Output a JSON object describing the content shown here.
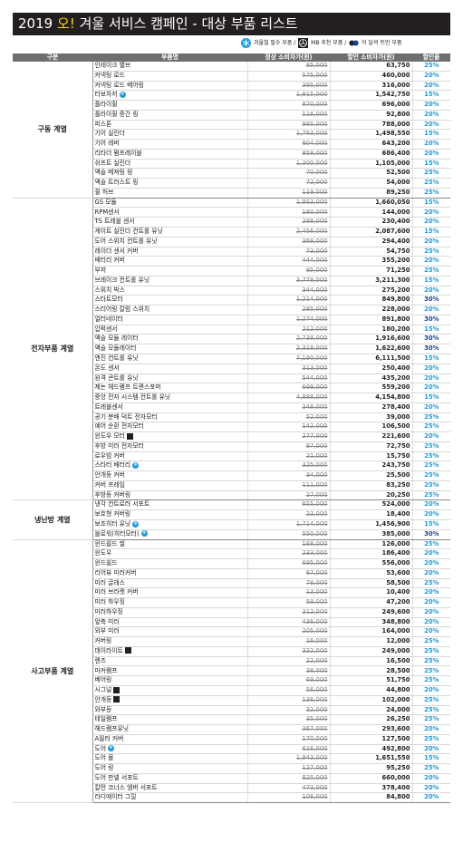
{
  "header": {
    "year": "2019",
    "accent": "오!",
    "title": "겨울 서비스 캠페인 - 대상 부품 리스트"
  },
  "legend": {
    "winter_label": "겨울철 필수 부품 /",
    "mb_label": "MB 추천 부품 /",
    "month_label": "이 달의 트만 부품"
  },
  "columns": {
    "category": "구분",
    "part": "부품명",
    "regular": "정상 소비자가(원)",
    "discount": "할인 소비자가(원)",
    "rate": "할인율"
  },
  "colors": {
    "title_bg": "#231f20",
    "accent": "#ffd400",
    "header_bg": "#6d6e70",
    "rate_blue": "#1b9ad6",
    "rate_dark": "#1c3f94"
  },
  "sections": [
    {
      "category": "구동 계열",
      "rows": [
        [
          "인테이크 밸브",
          "85,000",
          "63,750",
          "25%",
          ""
        ],
        [
          "커넥팅 로드",
          "575,000",
          "460,000",
          "20%",
          ""
        ],
        [
          "커넥팅 로드 베어링",
          "395,000",
          "316,000",
          "20%",
          ""
        ],
        [
          "터보차저",
          "1,815,000",
          "1,542,750",
          "15%",
          "w"
        ],
        [
          "플라이휠",
          "870,000",
          "696,000",
          "20%",
          ""
        ],
        [
          "플라이휠 중간 링",
          "116,000",
          "92,800",
          "20%",
          ""
        ],
        [
          "피스톤",
          "985,000",
          "788,000",
          "20%",
          ""
        ],
        [
          "기어 실린더",
          "1,763,000",
          "1,498,550",
          "15%",
          ""
        ],
        [
          "기어 레버",
          "804,000",
          "643,200",
          "20%",
          ""
        ],
        [
          "리타더 펌프레이블",
          "858,000",
          "686,400",
          "20%",
          ""
        ],
        [
          "쉬프트 실린더",
          "1,300,000",
          "1,105,000",
          "15%",
          ""
        ],
        [
          "액슬 메져링 링",
          "70,000",
          "52,500",
          "25%",
          ""
        ],
        [
          "액슬 트러스트 링",
          "72,000",
          "54,000",
          "25%",
          ""
        ],
        [
          "휠 허브",
          "119,000",
          "89,250",
          "25%",
          ""
        ]
      ]
    },
    {
      "category": "전자부품 계열",
      "rows": [
        [
          "GS 모듈",
          "1,953,000",
          "1,660,050",
          "15%",
          ""
        ],
        [
          "RPM센서",
          "180,000",
          "144,000",
          "20%",
          ""
        ],
        [
          "TS 트레블 센서",
          "288,000",
          "230,400",
          "20%",
          ""
        ],
        [
          "게이트 실린더 컨트롤 유닛",
          "2,456,000",
          "2,087,600",
          "15%",
          ""
        ],
        [
          "도어 스위치 컨트롤 유닛",
          "368,000",
          "294,400",
          "20%",
          ""
        ],
        [
          "레이더 센서 커버",
          "73,000",
          "54,750",
          "25%",
          ""
        ],
        [
          "배터리 커버",
          "444,000",
          "355,200",
          "20%",
          ""
        ],
        [
          "부저",
          "95,000",
          "71,250",
          "25%",
          ""
        ],
        [
          "브레이크 컨트롤 유닛",
          "3,778,000",
          "3,211,300",
          "15%",
          ""
        ],
        [
          "스위치 박스",
          "344,000",
          "275,200",
          "20%",
          ""
        ],
        [
          "스타트모터",
          "1,214,000",
          "849,800",
          "30%",
          ""
        ],
        [
          "스티어링 칼럼 스위치",
          "285,000",
          "228,000",
          "20%",
          ""
        ],
        [
          "얼터네이터",
          "1,274,000",
          "891,800",
          "30%",
          ""
        ],
        [
          "압력센서",
          "212,000",
          "180,200",
          "15%",
          ""
        ],
        [
          "액슬 모듈 레이터",
          "2,738,000",
          "1,916,600",
          "30%",
          ""
        ],
        [
          "액슬 모듈레이터",
          "2,318,000",
          "1,622,600",
          "30%",
          ""
        ],
        [
          "엔진 컨트롤 유닛",
          "7,190,000",
          "6,111,500",
          "15%",
          ""
        ],
        [
          "온도 센서",
          "313,000",
          "250,400",
          "20%",
          ""
        ],
        [
          "원격 콘트롤 유닛",
          "544,000",
          "435,200",
          "20%",
          ""
        ],
        [
          "제논 헤드램프 트랜스포머",
          "699,000",
          "559,200",
          "20%",
          ""
        ],
        [
          "중앙 전자 시스템 컨트롤 유닛",
          "4,888,000",
          "4,154,800",
          "15%",
          ""
        ],
        [
          "트레블센서",
          "348,000",
          "278,400",
          "20%",
          ""
        ],
        [
          "공기 분배 덕트 전자모터",
          "52,000",
          "39,000",
          "25%",
          ""
        ],
        [
          "예어 순환 전자모터",
          "142,000",
          "106,500",
          "25%",
          ""
        ],
        [
          "윈도우 모터",
          "277,000",
          "221,600",
          "20%",
          "m"
        ],
        [
          "후방 미러 전자모터",
          "97,000",
          "72,750",
          "25%",
          ""
        ],
        [
          "로우빔 커버",
          "21,000",
          "15,750",
          "25%",
          ""
        ],
        [
          "스타터 배터리",
          "325,000",
          "243,750",
          "25%",
          "w"
        ],
        [
          "안개등 커버",
          "34,000",
          "25,500",
          "25%",
          ""
        ],
        [
          "커버 프레임",
          "111,000",
          "83,250",
          "25%",
          ""
        ],
        [
          "후방등 커버링",
          "27,000",
          "20,250",
          "25%",
          ""
        ]
      ]
    },
    {
      "category": "냉난방 계열",
      "rows": [
        [
          "냉각 컨트로러 서포트",
          "655,000",
          "524,000",
          "20%",
          ""
        ],
        [
          "보호형 커버링",
          "23,000",
          "18,400",
          "20%",
          ""
        ],
        [
          "보조히터 유닛",
          "1,714,000",
          "1,456,900",
          "15%",
          "w"
        ],
        [
          "블로워(히터모터)",
          "550,000",
          "385,000",
          "30%",
          "w"
        ]
      ]
    },
    {
      "category": "사고부품 계열",
      "rows": [
        [
          "윈드쉴드 씰",
          "168,000",
          "126,000",
          "25%",
          ""
        ],
        [
          "윈도우",
          "233,000",
          "186,400",
          "20%",
          ""
        ],
        [
          "윈드쉴드",
          "695,000",
          "556,000",
          "20%",
          ""
        ],
        [
          "리어뷰 미러커버",
          "67,000",
          "53,600",
          "20%",
          ""
        ],
        [
          "미러 글래스",
          "78,000",
          "58,500",
          "25%",
          ""
        ],
        [
          "미러 브라켓 커버",
          "13,000",
          "10,400",
          "20%",
          ""
        ],
        [
          "미러 하우징",
          "59,000",
          "47,200",
          "20%",
          ""
        ],
        [
          "미러하우징",
          "312,000",
          "249,600",
          "20%",
          ""
        ],
        [
          "앞축 미러",
          "436,000",
          "348,800",
          "20%",
          ""
        ],
        [
          "외부 미러",
          "205,000",
          "164,000",
          "20%",
          ""
        ],
        [
          "커버링",
          "16,000",
          "12,000",
          "25%",
          ""
        ],
        [
          "데이라이트",
          "332,000",
          "249,000",
          "25%",
          "m"
        ],
        [
          "렌즈",
          "22,000",
          "16,500",
          "25%",
          ""
        ],
        [
          "마커램프",
          "38,000",
          "28,500",
          "25%",
          ""
        ],
        [
          "베어링",
          "69,000",
          "51,750",
          "25%",
          ""
        ],
        [
          "시그널",
          "56,000",
          "44,800",
          "20%",
          "m"
        ],
        [
          "안개등",
          "136,000",
          "102,000",
          "25%",
          "m"
        ],
        [
          "와부등",
          "32,000",
          "24,000",
          "25%",
          ""
        ],
        [
          "테일램프",
          "35,000",
          "26,250",
          "25%",
          ""
        ],
        [
          "헤드램프유닛",
          "367,000",
          "293,600",
          "20%",
          ""
        ],
        [
          "A필러 커버",
          "170,000",
          "127,500",
          "25%",
          ""
        ],
        [
          "도어",
          "616,000",
          "492,800",
          "20%",
          "w"
        ],
        [
          "도어 몰",
          "1,943,000",
          "1,651,550",
          "15%",
          ""
        ],
        [
          "도어 링",
          "127,000",
          "95,250",
          "25%",
          ""
        ],
        [
          "도어 판넬 서포트",
          "825,000",
          "660,000",
          "20%",
          ""
        ],
        [
          "칼먼 코너스 엠버 서포트",
          "473,000",
          "378,400",
          "20%",
          ""
        ],
        [
          "라디에이터 그릴",
          "106,000",
          "84,800",
          "20%",
          ""
        ]
      ]
    }
  ]
}
